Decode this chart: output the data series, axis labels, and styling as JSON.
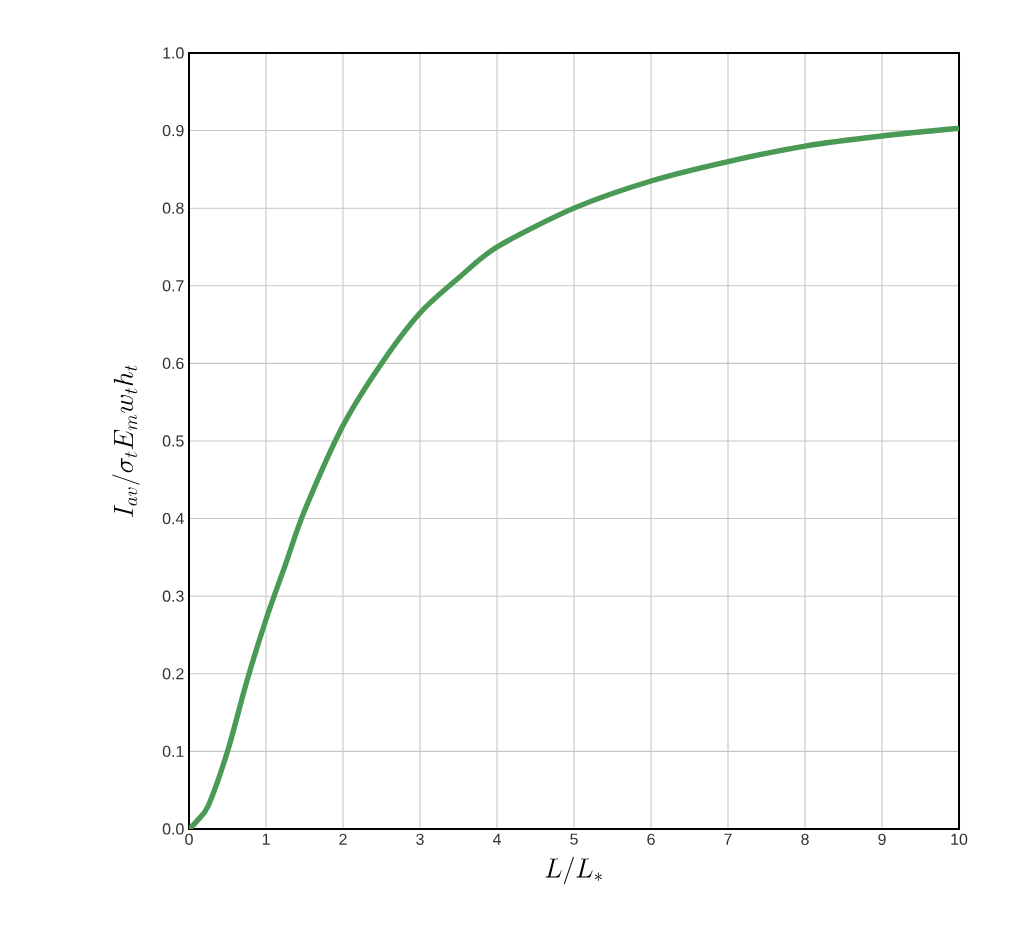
{
  "chart_data": {
    "type": "line",
    "xlabel": "L/L_*",
    "ylabel": "I_{av}/\\sigma_t E_m w_t h_t",
    "x": [
      0,
      0.1,
      0.25,
      0.5,
      0.75,
      1,
      1.25,
      1.5,
      2,
      2.5,
      3,
      3.5,
      4,
      5,
      6,
      7,
      8,
      9,
      10
    ],
    "series": [
      {
        "color": "#4a9a55",
        "values": [
          0,
          0.01,
          0.03,
          0.1,
          0.19,
          0.27,
          0.34,
          0.41,
          0.52,
          0.6,
          0.665,
          0.71,
          0.75,
          0.8,
          0.835,
          0.86,
          0.88,
          0.893,
          0.903
        ]
      }
    ],
    "xlim": [
      0,
      10
    ],
    "ylim": [
      0,
      1
    ],
    "xticks": [
      0,
      1,
      2,
      3,
      4,
      5,
      6,
      7,
      8,
      9,
      10
    ],
    "yticks": [
      {
        "value": 0,
        "label": "0.0"
      },
      0.1,
      0.2,
      0.3,
      0.4,
      0.5,
      0.6,
      0.7,
      0.8,
      0.9,
      {
        "value": 1,
        "label": "1.0"
      }
    ],
    "grid": true,
    "marker": "none",
    "line_style": "solid"
  }
}
